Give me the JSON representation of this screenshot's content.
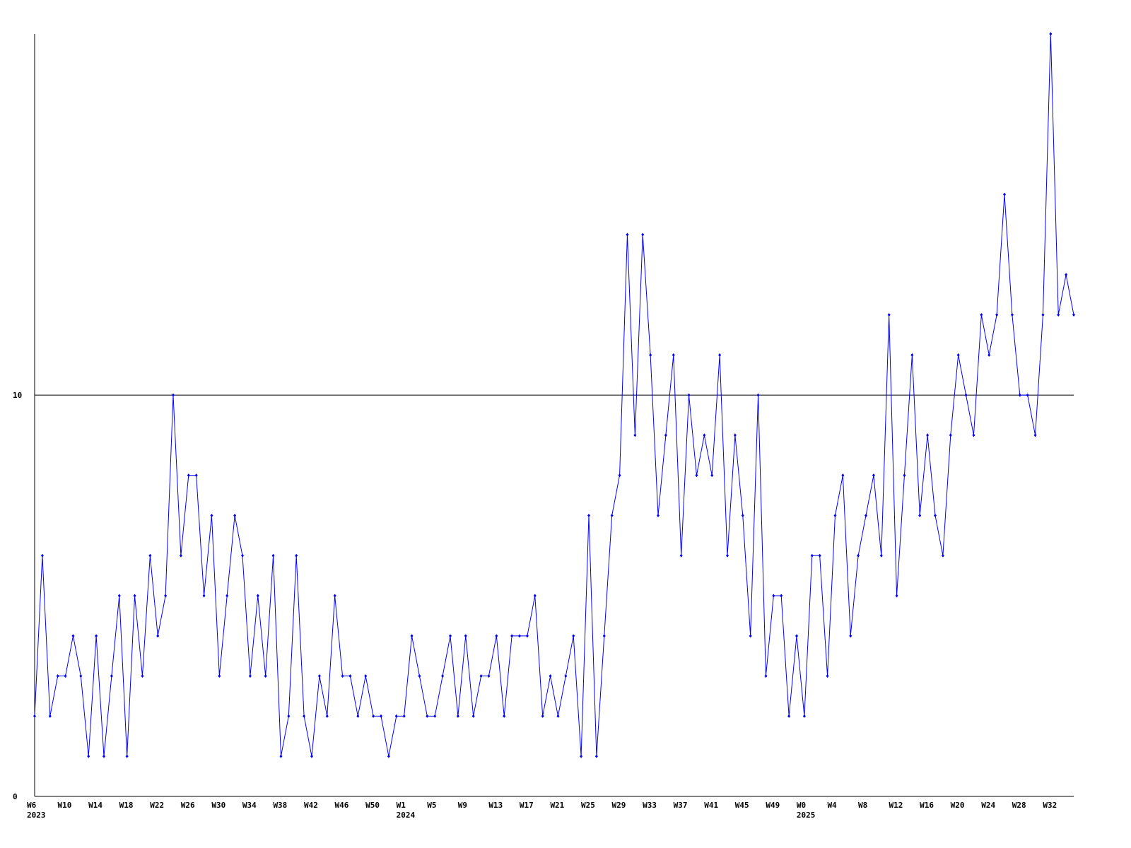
{
  "chart_data": {
    "type": "line",
    "categories": [
      "W6",
      null,
      null,
      null,
      "W10",
      null,
      null,
      null,
      "W14",
      null,
      null,
      null,
      "W18",
      null,
      null,
      null,
      "W22",
      null,
      null,
      null,
      "W26",
      null,
      null,
      null,
      "W30",
      null,
      null,
      null,
      "W34",
      null,
      null,
      null,
      "W38",
      null,
      null,
      null,
      "W42",
      null,
      null,
      null,
      "W46",
      null,
      null,
      null,
      "W50",
      null,
      null,
      null,
      "W1",
      null,
      null,
      null,
      "W5",
      null,
      null,
      null,
      "W9",
      null,
      null,
      null,
      "W13",
      null,
      null,
      null,
      "W17",
      null,
      null,
      null,
      "W21",
      null,
      null,
      null,
      "W25",
      null,
      null,
      null,
      "W29",
      null,
      null,
      null,
      "W33",
      null,
      null,
      null,
      "W37",
      null,
      null,
      null,
      "W41",
      null,
      null,
      null,
      "W45",
      null,
      null,
      null,
      "W49",
      null,
      null,
      null,
      "W0",
      null,
      null,
      null,
      "W4",
      null,
      null,
      null,
      "W8",
      null,
      null,
      null,
      "W12",
      null,
      null,
      null,
      "W16",
      null,
      null,
      null,
      "W20",
      null,
      null,
      null,
      "W24",
      null,
      null,
      null,
      "W28",
      null,
      null,
      null,
      "W32",
      null,
      null,
      null
    ],
    "category_years": [
      "2023",
      null,
      null,
      null,
      null,
      null,
      null,
      null,
      null,
      null,
      null,
      null,
      null,
      null,
      null,
      null,
      null,
      null,
      null,
      null,
      null,
      null,
      null,
      null,
      null,
      null,
      null,
      null,
      null,
      null,
      null,
      null,
      null,
      null,
      null,
      null,
      null,
      null,
      null,
      null,
      null,
      null,
      null,
      null,
      null,
      null,
      null,
      null,
      "2024",
      null,
      null,
      null,
      null,
      null,
      null,
      null,
      null,
      null,
      null,
      null,
      null,
      null,
      null,
      null,
      null,
      null,
      null,
      null,
      null,
      null,
      null,
      null,
      null,
      null,
      null,
      null,
      null,
      null,
      null,
      null,
      null,
      null,
      null,
      null,
      null,
      null,
      null,
      null,
      null,
      null,
      null,
      null,
      null,
      null,
      null,
      null,
      null,
      null,
      null,
      null,
      "2025",
      null,
      null,
      null,
      null,
      null,
      null,
      null,
      null,
      null,
      null,
      null,
      null,
      null,
      null,
      null,
      null,
      null,
      null,
      null,
      null,
      null,
      null,
      null,
      null,
      null,
      null,
      null,
      null,
      null,
      null,
      null,
      null,
      null,
      null,
      null
    ],
    "values": [
      2,
      6,
      2,
      3,
      3,
      4,
      3,
      1,
      4,
      1,
      3,
      5,
      1,
      5,
      3,
      6,
      4,
      5,
      10,
      6,
      8,
      8,
      5,
      7,
      3,
      5,
      7,
      6,
      3,
      5,
      3,
      6,
      1,
      2,
      6,
      2,
      1,
      3,
      2,
      5,
      3,
      3,
      2,
      3,
      2,
      2,
      1,
      2,
      2,
      4,
      3,
      2,
      2,
      3,
      4,
      2,
      4,
      2,
      3,
      3,
      4,
      2,
      4,
      4,
      4,
      5,
      2,
      3,
      2,
      3,
      4,
      1,
      7,
      1,
      4,
      7,
      8,
      14,
      9,
      14,
      11,
      7,
      9,
      11,
      6,
      10,
      8,
      9,
      8,
      11,
      6,
      9,
      7,
      4,
      10,
      3,
      5,
      5,
      2,
      4,
      2,
      6,
      6,
      3,
      7,
      8,
      4,
      6,
      7,
      8,
      6,
      12,
      5,
      8,
      11,
      7,
      9,
      7,
      6,
      9,
      11,
      10,
      9,
      12,
      11,
      12,
      15,
      12,
      10,
      10,
      9,
      12,
      19,
      12,
      13,
      12
    ],
    "color": "#0000ff",
    "ylim": [
      0,
      19
    ],
    "yticks": [
      0,
      10
    ],
    "grid": true
  }
}
